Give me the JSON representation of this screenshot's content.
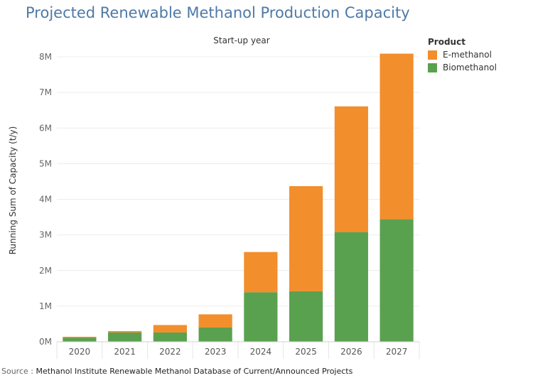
{
  "title": "Projected Renewable Methanol Production Capacity",
  "source_prefix": "Source : ",
  "source_text": "Methanol Institute Renewable Methanol Database of Current/Announced Projects",
  "chart_data": {
    "type": "bar",
    "stacked": true,
    "title": "Projected Renewable Methanol Production Capacity",
    "xlabel_top": "Start-up year",
    "ylabel": "Running Sum of Capacity (t/y)",
    "categories": [
      "2020",
      "2021",
      "2022",
      "2023",
      "2024",
      "2025",
      "2026",
      "2027"
    ],
    "ylim": [
      0,
      8200000
    ],
    "yticks": [
      0,
      1000000,
      2000000,
      3000000,
      4000000,
      5000000,
      6000000,
      7000000,
      8000000
    ],
    "ytick_labels": [
      "0M",
      "1M",
      "2M",
      "3M",
      "4M",
      "5M",
      "6M",
      "7M",
      "8M"
    ],
    "legend_title": "Product",
    "legend_position": "top-right",
    "grid": true,
    "series": [
      {
        "name": "Biomethanol",
        "color": "#59a14f",
        "values": [
          110000,
          260000,
          260000,
          400000,
          1390000,
          1420000,
          3080000,
          3440000
        ]
      },
      {
        "name": "E-methanol",
        "color": "#f28e2b",
        "values": [
          30000,
          40000,
          210000,
          370000,
          1130000,
          2950000,
          3530000,
          4650000
        ]
      }
    ],
    "legend_order": [
      "E-methanol",
      "Biomethanol"
    ]
  }
}
